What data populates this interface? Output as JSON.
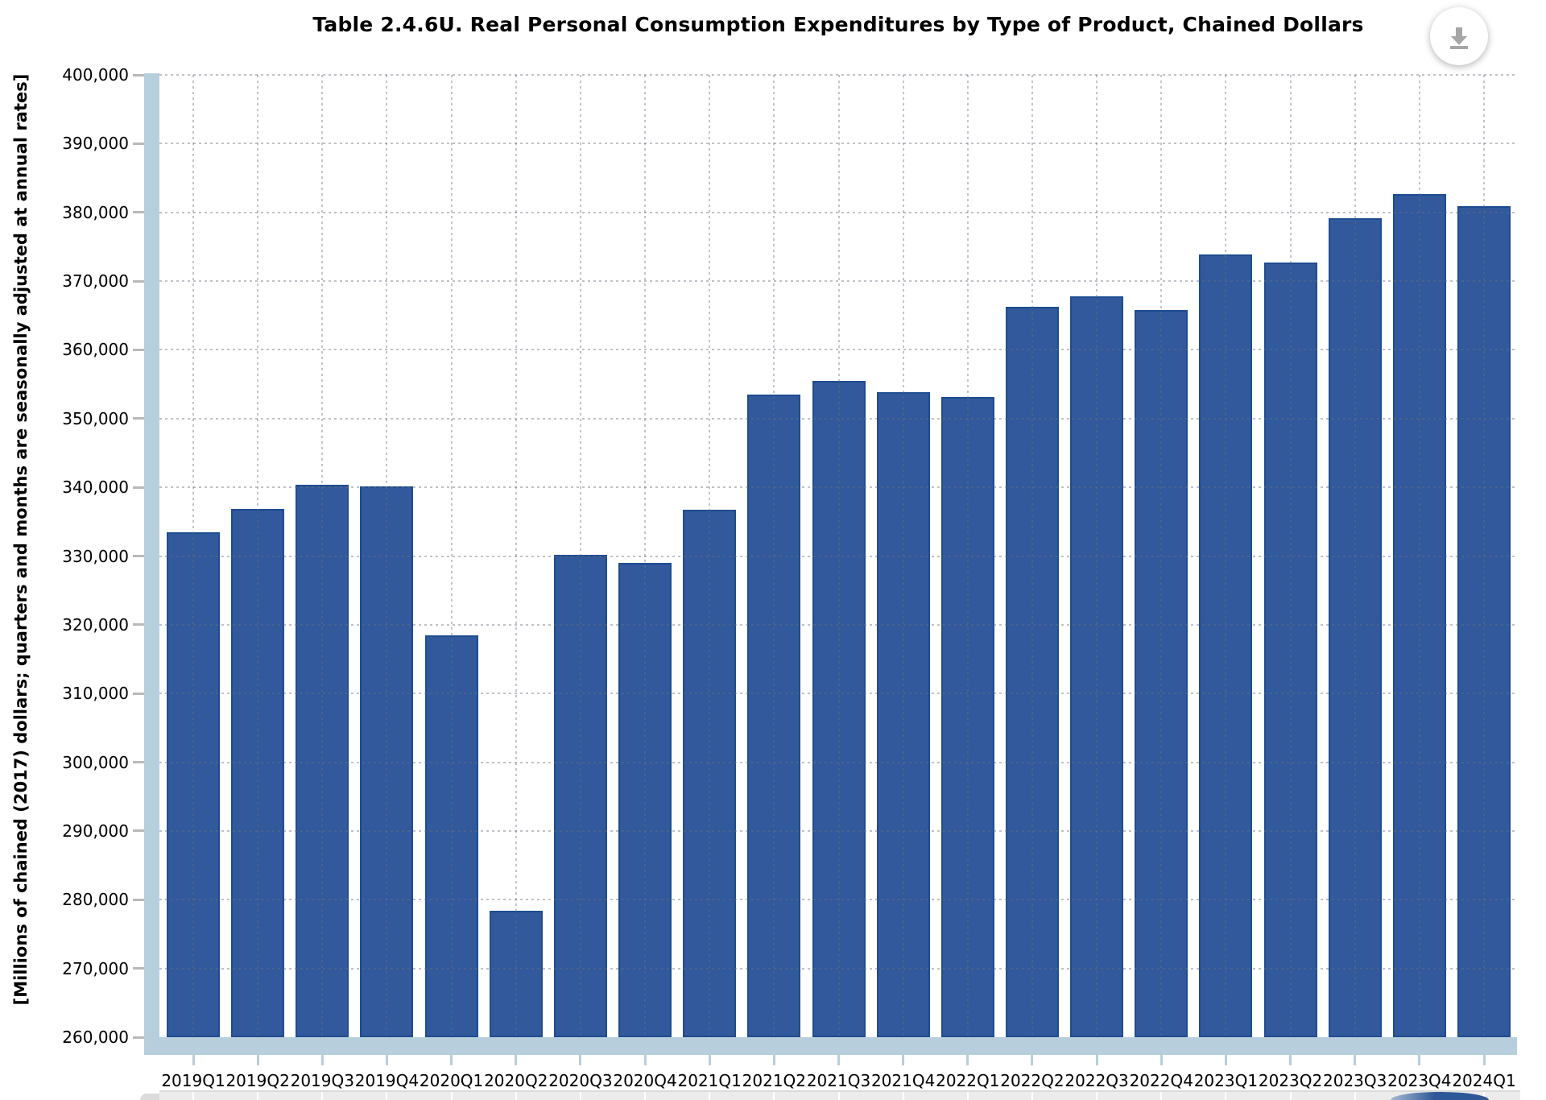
{
  "header": {
    "download_label": "download-chart"
  },
  "chart_data": {
    "type": "bar",
    "title": "Table 2.4.6U. Real Personal Consumption Expenditures by Type of Product, Chained Dollars",
    "ylabel": "[Millions of chained (2017) dollars; quarters and months are seasonally adjusted at annual rates]",
    "xlabel": "",
    "categories": [
      "2019Q1",
      "2019Q2",
      "2019Q3",
      "2019Q4",
      "2020Q1",
      "2020Q2",
      "2020Q3",
      "2020Q4",
      "2021Q1",
      "2021Q2",
      "2021Q3",
      "2021Q4",
      "2022Q1",
      "2022Q2",
      "2022Q3",
      "2022Q4",
      "2023Q1",
      "2023Q2",
      "2023Q3",
      "2023Q4",
      "2024Q1"
    ],
    "values": [
      333500,
      336800,
      340400,
      340100,
      318500,
      278400,
      330200,
      329000,
      336700,
      353500,
      355500,
      353800,
      353100,
      366300,
      367800,
      365800,
      373900,
      372700,
      379100,
      382700,
      380900
    ],
    "ylim": [
      260000,
      400000
    ],
    "ytick_step": 10000,
    "legend": "none",
    "grid": "dotted-both",
    "colors": {
      "bar_fill": "#31599B",
      "bar_border": "#1E4D90",
      "axis_accent": "#B7CEDC",
      "gridline": "#C8C8C8",
      "ytick_mark": "#B9B9B9",
      "strip_bg": "#ECECEC",
      "download_icon": "#A6A6A6"
    }
  }
}
